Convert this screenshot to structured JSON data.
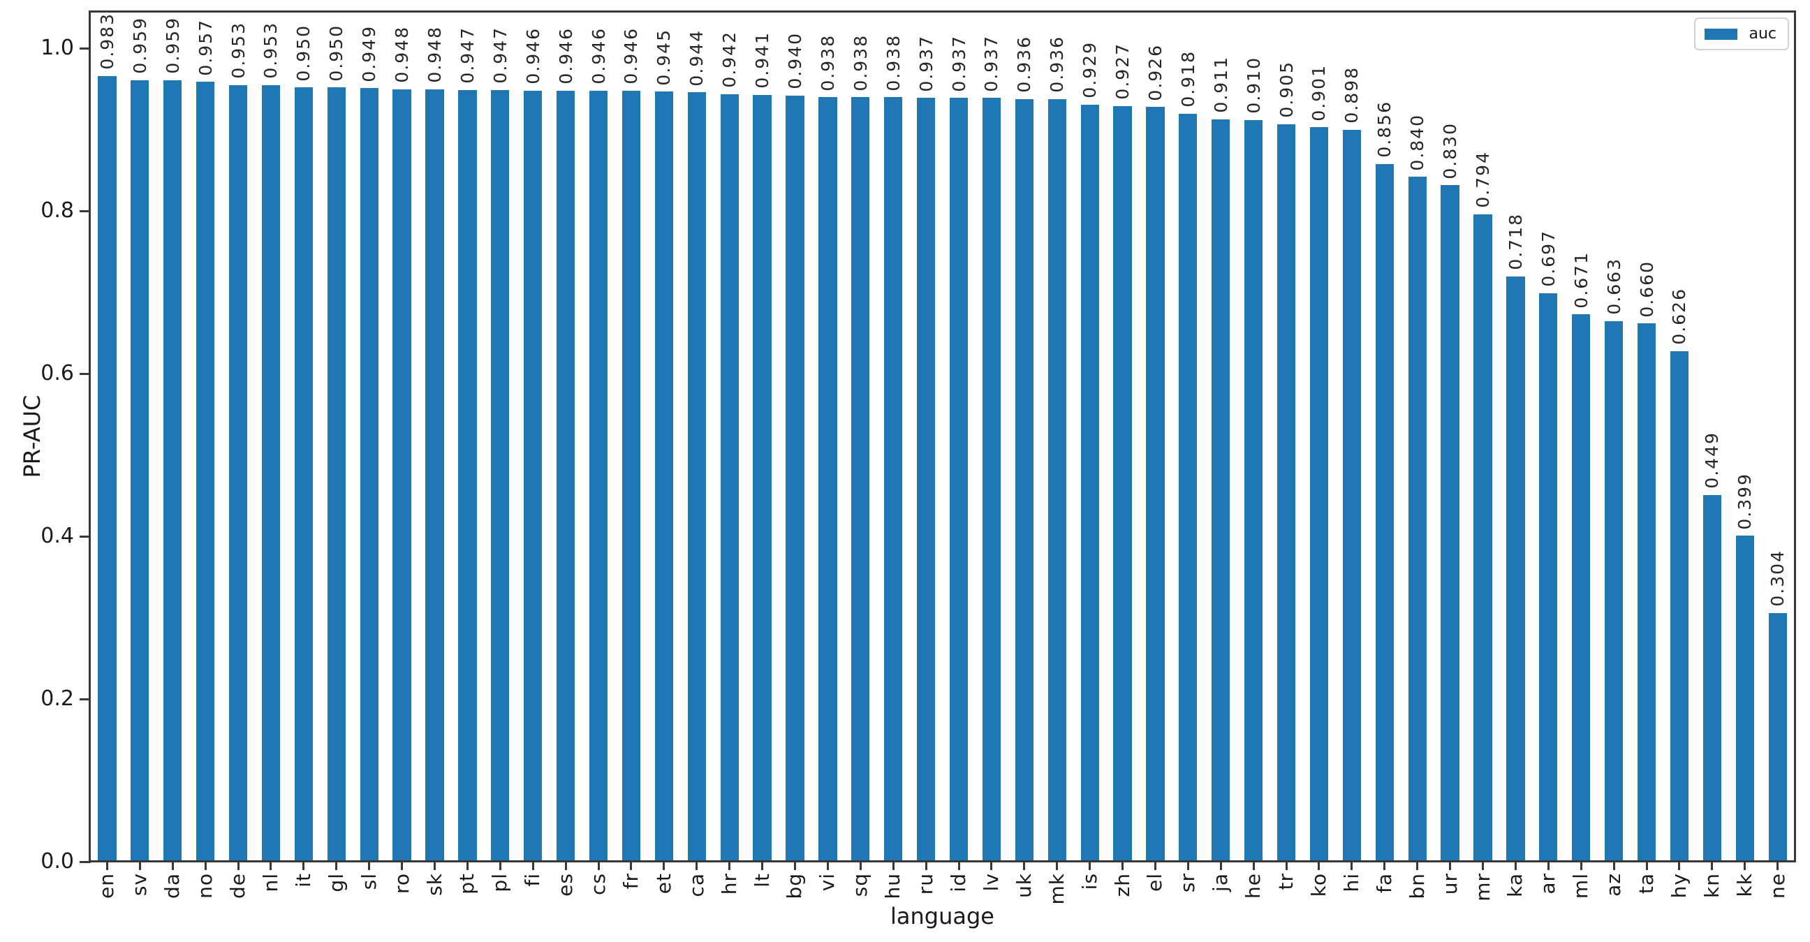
{
  "chart_data": {
    "type": "bar",
    "title": "",
    "xlabel": "language",
    "ylabel": "PR-AUC",
    "ylim": [
      0,
      1.05
    ],
    "ytick_labels": [
      "0.0",
      "0.2",
      "0.4",
      "0.6",
      "0.8",
      "1.0"
    ],
    "grid": false,
    "legend_position": "upper-right",
    "legend": {
      "entries": [
        {
          "label": "auc",
          "color": "#1f77b4"
        }
      ]
    },
    "bar_color": "#1f77b4",
    "value_label_decimals": 3,
    "categories": [
      "en",
      "sv",
      "da",
      "no",
      "de",
      "nl",
      "it",
      "gl",
      "sl",
      "ro",
      "sk",
      "pt",
      "pl",
      "fi",
      "es",
      "cs",
      "fr",
      "et",
      "ca",
      "hr",
      "lt",
      "bg",
      "vi",
      "sq",
      "hu",
      "ru",
      "id",
      "lv",
      "uk",
      "mk",
      "is",
      "zh",
      "el",
      "sr",
      "ja",
      "he",
      "tr",
      "ko",
      "hi",
      "fa",
      "bn",
      "ur",
      "mr",
      "ka",
      "ar",
      "ml",
      "az",
      "ta",
      "hy",
      "kn",
      "kk",
      "ne"
    ],
    "values": [
      0.983,
      0.959,
      0.959,
      0.957,
      0.953,
      0.953,
      0.95,
      0.95,
      0.949,
      0.948,
      0.948,
      0.947,
      0.947,
      0.946,
      0.946,
      0.946,
      0.946,
      0.945,
      0.944,
      0.942,
      0.941,
      0.94,
      0.938,
      0.938,
      0.938,
      0.937,
      0.937,
      0.937,
      0.936,
      0.936,
      0.929,
      0.927,
      0.926,
      0.918,
      0.911,
      0.91,
      0.905,
      0.901,
      0.898,
      0.856,
      0.84,
      0.83,
      0.794,
      0.718,
      0.697,
      0.671,
      0.663,
      0.66,
      0.626,
      0.449,
      0.399,
      0.304
    ]
  },
  "colors": {
    "bar": "#1f77b4",
    "axis": "#383838",
    "text": "#1a1a1a",
    "legend_border": "#d2d2d2"
  }
}
